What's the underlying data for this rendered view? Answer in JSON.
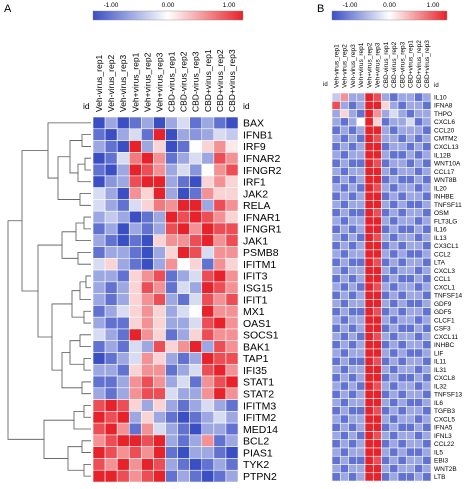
{
  "chart_data": [
    {
      "type": "heatmap",
      "panel": "A",
      "colorbar": {
        "min": -1.0,
        "max": 1.0,
        "ticks": [
          "-1.00",
          "0.00",
          "1.00"
        ],
        "colors": {
          "low": "#3a4fc4",
          "mid": "#ffffff",
          "high": "#e8222a"
        }
      },
      "id_label": "id",
      "columns": [
        "Veh-virus_rep1",
        "Veh-virus_rep2",
        "Veh-virus_rep3",
        "Veh+virus_rep1",
        "Veh+virus_rep2",
        "Veh+virus_rep3",
        "CBD-virus_rep1",
        "CBD-virus_rep2",
        "CBD-virus_rep3",
        "CBD+virus_rep1",
        "CBD+virus_rep2",
        "CBD+virus_rep3"
      ],
      "rows": [
        "BAX",
        "IFNB1",
        "IRF9",
        "IFNAR2",
        "IFNGR2",
        "IRF1",
        "JAK2",
        "RELA",
        "IFNAR1",
        "IFNGR1",
        "JAK1",
        "PSMB8",
        "IFITM1",
        "IFIT3",
        "ISG15",
        "IFIT1",
        "MX1",
        "OAS1",
        "SOCS1",
        "BAK1",
        "TAP1",
        "IFI35",
        "STAT1",
        "STAT2",
        "IFITM3",
        "IFITM2",
        "MED14",
        "BCL2",
        "PIAS1",
        "TYK2",
        "PTPN2"
      ],
      "values": [
        [
          -1,
          -0.5,
          -1,
          -0.8,
          -0.5,
          -1,
          -0.5,
          -0.2,
          -0.8,
          -0.5,
          -0.8,
          -1
        ],
        [
          -0.8,
          -1,
          -0.5,
          -0.2,
          -0.8,
          1,
          -1,
          -0.5,
          -0.6,
          -0.5,
          -0.2,
          -0.3
        ],
        [
          -0.5,
          -0.8,
          -1,
          1,
          -0.5,
          0.2,
          -1,
          -0.8,
          0,
          0.2,
          0.5,
          0.1
        ],
        [
          -1,
          -0.8,
          -0.2,
          0.6,
          1,
          0.5,
          -0.8,
          -0.5,
          -0.2,
          -0.5,
          0.8,
          0.5
        ],
        [
          -0.8,
          -1,
          -0.5,
          1,
          0.8,
          0.5,
          -0.5,
          -0.2,
          -0.6,
          0,
          0.5,
          0.8
        ],
        [
          -1,
          -0.6,
          -0.5,
          0.8,
          1,
          1,
          -0.5,
          -0.8,
          -1,
          0.2,
          0.5,
          0.2
        ],
        [
          -0.2,
          -0.5,
          -1,
          0.5,
          0.2,
          1,
          -0.5,
          -1,
          -0.8,
          0.5,
          0.2,
          0.2
        ],
        [
          -0.2,
          -0.5,
          -0.8,
          -0.2,
          0.2,
          0.6,
          0.5,
          1,
          1,
          -0.5,
          0.8,
          0.5
        ],
        [
          -0.5,
          -0.3,
          -0.5,
          -1,
          -0.8,
          -0.5,
          1,
          0.8,
          1,
          0.8,
          0.5,
          0.2
        ],
        [
          -0.8,
          -0.5,
          -1,
          -0.5,
          -0.8,
          -0.5,
          0.8,
          1,
          0.5,
          1,
          0.8,
          0.8
        ],
        [
          -0.5,
          -0.8,
          -1,
          -0.8,
          -1,
          0.2,
          0.5,
          0.5,
          0.8,
          1,
          0.5,
          0.8
        ],
        [
          -0.8,
          -0.5,
          -0.5,
          -0.8,
          -1,
          -0.5,
          0.2,
          1,
          0.8,
          -0.2,
          0.5,
          0.5
        ],
        [
          -0.2,
          0.2,
          -0.5,
          -0.8,
          -1,
          -0.5,
          0.5,
          0,
          0.2,
          -0.8,
          0.5,
          0.2
        ],
        [
          -0.5,
          -0.5,
          -0.8,
          0.2,
          0.5,
          0.8,
          -0.8,
          -0.5,
          -0.2,
          0.8,
          1,
          0.5
        ],
        [
          -0.5,
          -0.8,
          -0.5,
          0.2,
          0.8,
          0.5,
          -0.8,
          -0.2,
          -0.5,
          1,
          0.8,
          0.5
        ],
        [
          -0.5,
          -0.8,
          -0.5,
          0.2,
          0.5,
          0.8,
          -0.5,
          -0.8,
          -0.2,
          0.8,
          0.5,
          0.8
        ],
        [
          -0.8,
          -0.5,
          -0.2,
          0.2,
          0.5,
          0.2,
          -0.5,
          -0.2,
          0,
          1,
          0.5,
          0.5
        ],
        [
          -0.5,
          -0.8,
          -0.8,
          0.2,
          0.5,
          0.2,
          -0.5,
          -0.5,
          -0.2,
          0.8,
          1,
          0.5
        ],
        [
          -0.2,
          -0.5,
          -0.8,
          1,
          0.5,
          0.2,
          -0.8,
          -0.5,
          0.2,
          0.8,
          0.5,
          0.5
        ],
        [
          -0.8,
          -0.5,
          -0.8,
          -0.2,
          -0.5,
          0.8,
          0.2,
          0.5,
          1,
          -0.5,
          0.8,
          0.5
        ],
        [
          -1,
          -0.8,
          -0.5,
          -0.2,
          0.5,
          0.2,
          -0.5,
          -0.8,
          -0.5,
          1,
          0.8,
          0.8
        ],
        [
          -0.5,
          -0.5,
          -0.8,
          0.2,
          0.5,
          0.5,
          -0.8,
          -0.5,
          -0.2,
          0.8,
          1,
          0.5
        ],
        [
          -0.8,
          -0.8,
          -0.5,
          0.5,
          0.8,
          0.5,
          -0.5,
          -0.2,
          -0.8,
          0.5,
          0.8,
          1
        ],
        [
          -0.5,
          -0.8,
          -0.5,
          0.5,
          0.8,
          0.8,
          -0.2,
          -0.5,
          -0.5,
          0.5,
          1,
          0.5
        ],
        [
          0.8,
          1,
          0.8,
          0.2,
          -0.5,
          0.2,
          -0.5,
          -0.8,
          -0.5,
          -0.2,
          -0.5,
          -0.8
        ],
        [
          1,
          0.8,
          1,
          -0.5,
          0.2,
          -0.5,
          -0.8,
          -1,
          -0.8,
          -0.5,
          -0.2,
          -0.5
        ],
        [
          0.8,
          1,
          0.5,
          -0.8,
          0.5,
          -0.2,
          -0.5,
          -0.8,
          -1,
          -0.5,
          -0.5,
          -0.8
        ],
        [
          0.5,
          0.8,
          1,
          1,
          0.8,
          1,
          -0.5,
          -0.8,
          -0.5,
          0.5,
          -0.8,
          -0.5
        ],
        [
          1,
          0.8,
          0.5,
          0.8,
          0.5,
          1,
          -0.8,
          -1,
          -0.5,
          -0.5,
          -0.8,
          -1
        ],
        [
          0.8,
          0.5,
          1,
          0.5,
          1,
          0.8,
          -0.5,
          -0.8,
          -1,
          -0.8,
          -0.5,
          -0.8
        ],
        [
          1,
          1,
          0.8,
          0.5,
          0.8,
          1,
          -0.8,
          -0.5,
          -0.8,
          -1,
          -0.8,
          -0.5
        ]
      ]
    },
    {
      "type": "heatmap",
      "panel": "B",
      "colorbar": {
        "min": -1.0,
        "max": 1.0,
        "ticks": [
          "-1.00",
          "0.00",
          "1.00"
        ],
        "colors": {
          "low": "#3a4fc4",
          "mid": "#ffffff",
          "high": "#e8222a"
        }
      },
      "id_label": "id",
      "columns": [
        "Veh-virus_rep1",
        "Veh-virus_rep2",
        "Veh-virus_rep3",
        "Veh+virus_rep1",
        "Veh+virus_rep2",
        "Veh+virus_rep3",
        "CBD-virus_rep1",
        "CBD-virus_rep2",
        "CBD-virus_rep3",
        "CBD+virus_rep1",
        "CBD+virus_rep2",
        "CBD+virus_rep3"
      ],
      "rows": [
        "IL10",
        "IFNA8",
        "THPO",
        "CXCL6",
        "CCL20",
        "CMTM2",
        "CXCL13",
        "IL12B",
        "WNT10A",
        "CCL17",
        "WNT8B",
        "IL20",
        "INHBE",
        "TNFSF11",
        "OSM",
        "FLT3LG",
        "IL16",
        "IL13",
        "CX3CL1",
        "CCL2",
        "LTA",
        "CXCL3",
        "CCL1",
        "CXCL1",
        "TNFSF14",
        "GDF9",
        "GDF5",
        "CLCF1",
        "CSF3",
        "CXCL11",
        "INHBC",
        "LIF",
        "IL11",
        "IL31",
        "CXCL8",
        "IL32",
        "TNFSF13",
        "IL6",
        "TGFB3",
        "CXCL5",
        "IFNA5",
        "IFNL3",
        "CCL22",
        "IL5",
        "EBI3",
        "WNT2B",
        "LTB"
      ],
      "values": [
        [
          -0.3,
          0.5,
          -0.5,
          -0.5,
          1,
          0.8,
          -0.5,
          -0.8,
          -0.5,
          -0.5,
          -0.8,
          -0.5
        ],
        [
          0.8,
          -0.5,
          -0.8,
          -0.5,
          1,
          1,
          0.2,
          -0.5,
          -0.8,
          -0.5,
          -0.5,
          -0.8
        ],
        [
          -0.5,
          0.2,
          -0.5,
          -0.8,
          1,
          0.5,
          -0.5,
          -0.2,
          -0.5,
          -0.8,
          -0.5,
          -0.5
        ],
        [
          -0.5,
          -0.8,
          -0.5,
          0,
          1,
          0.2,
          -0.8,
          -0.5,
          -0.5,
          -0.2,
          -0.8,
          -0.5
        ],
        [
          -0.8,
          -0.5,
          -0.8,
          -0.5,
          1,
          1,
          -0.5,
          -0.8,
          -0.5,
          -0.5,
          -0.5,
          -0.8
        ],
        [
          -0.5,
          -0.8,
          -0.5,
          -0.8,
          1,
          0.8,
          -0.5,
          -0.5,
          -0.8,
          -0.5,
          -0.8,
          -0.5
        ],
        [
          -0.8,
          -0.5,
          -0.8,
          -0.5,
          1,
          1,
          -0.8,
          -0.5,
          -0.5,
          -0.8,
          -0.5,
          -0.8
        ],
        [
          -0.5,
          -0.8,
          -0.5,
          -0.5,
          1,
          1,
          -0.5,
          -0.8,
          -0.8,
          -0.5,
          -0.8,
          -0.5
        ],
        [
          -0.8,
          -0.5,
          -0.8,
          -0.8,
          1,
          0.8,
          -0.8,
          -0.5,
          -0.5,
          -0.8,
          -0.5,
          -0.8
        ],
        [
          -0.5,
          -0.8,
          -0.5,
          -0.5,
          1,
          1,
          -0.5,
          -0.8,
          -0.5,
          -0.5,
          -0.8,
          -0.5
        ],
        [
          -0.8,
          -0.5,
          -0.8,
          -0.5,
          1,
          1,
          -0.8,
          -0.5,
          -0.8,
          -0.8,
          -0.5,
          -0.8
        ],
        [
          -0.5,
          -0.8,
          -0.5,
          -0.8,
          1,
          0.8,
          -0.5,
          -0.8,
          -0.5,
          -0.5,
          -0.8,
          -0.5
        ],
        [
          -0.8,
          -0.5,
          -0.8,
          -0.5,
          1,
          1,
          -0.8,
          -0.5,
          -0.8,
          -0.5,
          -0.5,
          -0.8
        ],
        [
          -0.5,
          -0.8,
          -0.5,
          -0.5,
          1,
          1,
          -0.5,
          -0.8,
          -0.5,
          -0.8,
          -0.8,
          -0.5
        ],
        [
          -0.8,
          -0.5,
          -0.8,
          -0.8,
          1,
          0.8,
          -0.8,
          -0.5,
          -0.8,
          -0.5,
          -0.5,
          -0.8
        ],
        [
          -0.5,
          -0.8,
          -0.5,
          -0.5,
          1,
          1,
          -0.5,
          -0.8,
          -0.5,
          -0.5,
          -0.8,
          -0.5
        ],
        [
          -0.8,
          -0.5,
          -0.8,
          -0.5,
          1,
          1,
          -0.8,
          -0.5,
          -0.8,
          -0.8,
          -0.5,
          -0.8
        ],
        [
          -0.5,
          -0.8,
          -0.5,
          -0.8,
          1,
          0.8,
          -0.5,
          -0.8,
          -0.5,
          -0.5,
          -0.8,
          -0.5
        ],
        [
          -0.8,
          -0.5,
          -0.8,
          -0.5,
          1,
          1,
          -0.8,
          -0.5,
          -0.8,
          -0.5,
          -0.5,
          -0.8
        ],
        [
          -0.5,
          -0.8,
          -0.5,
          -0.5,
          1,
          1,
          -0.5,
          -0.8,
          -0.5,
          -0.8,
          -0.8,
          -0.5
        ],
        [
          -0.8,
          -0.5,
          -0.8,
          -0.8,
          1,
          0.8,
          -0.8,
          -0.5,
          -0.8,
          -0.5,
          -0.5,
          -0.8
        ],
        [
          -0.5,
          -0.8,
          -0.5,
          -0.5,
          1,
          1,
          -0.5,
          -0.8,
          -0.5,
          -0.5,
          -0.8,
          -0.5
        ],
        [
          -0.8,
          -0.5,
          -0.8,
          -0.5,
          1,
          1,
          -0.8,
          -0.5,
          -0.8,
          -0.8,
          -0.5,
          -0.8
        ],
        [
          -0.5,
          -0.8,
          -0.5,
          -0.8,
          1,
          0.8,
          -0.5,
          -0.8,
          -0.5,
          -0.5,
          -0.8,
          -0.5
        ],
        [
          -0.8,
          -0.5,
          -0.8,
          -0.5,
          1,
          1,
          -0.8,
          -0.5,
          -0.8,
          -0.5,
          -0.5,
          -0.8
        ],
        [
          -0.5,
          -0.8,
          -0.5,
          -0.5,
          1,
          1,
          -0.5,
          -0.8,
          -0.5,
          -0.8,
          -0.8,
          -0.5
        ],
        [
          -0.8,
          -0.5,
          -0.8,
          -0.8,
          1,
          0.8,
          -0.8,
          -0.5,
          -0.8,
          -0.5,
          -0.5,
          -0.8
        ],
        [
          -0.5,
          -0.8,
          -0.5,
          -0.5,
          1,
          1,
          -0.5,
          -0.8,
          -0.5,
          -0.5,
          -0.8,
          -0.5
        ],
        [
          -0.8,
          -0.5,
          -0.8,
          -0.5,
          1,
          1,
          -0.8,
          -0.5,
          -0.8,
          -0.8,
          -0.5,
          -0.8
        ],
        [
          -0.5,
          -0.8,
          -0.5,
          -0.8,
          1,
          0.8,
          -0.5,
          -0.8,
          -0.5,
          -0.5,
          -0.8,
          -0.5
        ],
        [
          -0.8,
          -0.5,
          -0.8,
          -0.5,
          1,
          1,
          -0.8,
          -0.5,
          -0.8,
          -0.5,
          -0.5,
          -0.8
        ],
        [
          -0.5,
          -0.8,
          -0.5,
          -0.5,
          1,
          1,
          -0.5,
          -0.8,
          -0.5,
          -0.8,
          -0.8,
          -0.5
        ],
        [
          -0.8,
          -0.5,
          -0.8,
          -0.8,
          1,
          0.8,
          -0.8,
          -0.5,
          -0.8,
          -0.5,
          -0.5,
          -0.8
        ],
        [
          -0.5,
          -0.8,
          -0.5,
          -0.5,
          1,
          1,
          -0.5,
          -0.8,
          -0.5,
          -0.5,
          -0.8,
          -0.5
        ],
        [
          -0.8,
          -0.5,
          -0.8,
          -0.5,
          1,
          1,
          -0.8,
          -0.5,
          -0.8,
          -0.8,
          -0.5,
          -0.8
        ],
        [
          -0.5,
          -0.8,
          -0.5,
          -0.8,
          1,
          0.8,
          -0.5,
          -0.8,
          -0.5,
          -0.5,
          -0.8,
          -0.5
        ],
        [
          -0.8,
          -0.5,
          -0.8,
          -0.5,
          1,
          1,
          -0.8,
          -0.5,
          -0.8,
          -0.5,
          -0.5,
          -0.8
        ],
        [
          -0.5,
          -0.8,
          -0.5,
          -0.5,
          1,
          1,
          -0.5,
          -0.8,
          -0.5,
          -0.8,
          -0.8,
          -0.5
        ],
        [
          -0.8,
          -0.5,
          -0.8,
          -0.8,
          1,
          0.8,
          -0.8,
          -0.5,
          -0.8,
          -0.5,
          -0.5,
          -0.8
        ],
        [
          -0.5,
          -0.8,
          -0.5,
          -0.5,
          1,
          1,
          -0.5,
          -0.8,
          -0.5,
          -0.5,
          -0.8,
          -0.5
        ],
        [
          -0.8,
          -0.5,
          -0.8,
          -0.5,
          1,
          1,
          -0.8,
          -0.5,
          -0.8,
          -0.8,
          -0.5,
          -0.8
        ],
        [
          -0.5,
          -0.8,
          -0.5,
          -0.8,
          1,
          0.8,
          -0.5,
          -0.8,
          -0.5,
          -0.5,
          -0.8,
          -0.5
        ],
        [
          -0.8,
          -0.5,
          -0.8,
          -0.5,
          1,
          1,
          -0.8,
          -0.5,
          -0.8,
          -0.5,
          -0.5,
          -0.8
        ],
        [
          -0.5,
          -0.8,
          -0.5,
          -0.5,
          1,
          1,
          -0.5,
          -0.8,
          -0.5,
          -0.8,
          -0.8,
          -0.5
        ],
        [
          -0.8,
          -0.5,
          -0.8,
          -0.8,
          1,
          0.8,
          -0.8,
          -0.5,
          -0.8,
          -0.5,
          -0.5,
          -0.8
        ],
        [
          -0.5,
          -0.8,
          -0.5,
          -0.5,
          1,
          1,
          -0.5,
          -0.8,
          -0.5,
          -0.5,
          -0.8,
          -0.5
        ],
        [
          -0.8,
          -0.5,
          -0.8,
          -0.5,
          1,
          1,
          -0.8,
          -0.5,
          -0.8,
          -0.8,
          -0.5,
          -0.8
        ]
      ]
    }
  ]
}
